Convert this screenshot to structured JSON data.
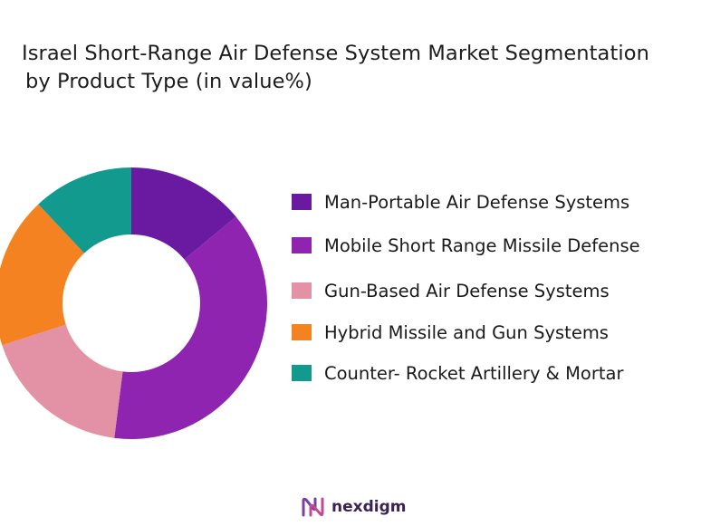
{
  "title_lines": [
    "Israel Short-Range Air Defense System Market Segmentation",
    "by Product Type (in value%)"
  ],
  "brand": {
    "name": "nexdigm"
  },
  "chart_data": {
    "type": "pie",
    "donut": true,
    "title": "Israel Short-Range Air Defense System Market Segmentation by Product Type (in value%)",
    "categories": [
      "Man-Portable Air Defense Systems",
      "Mobile Short Range Missile Defense",
      "Gun-Based Air Defense Systems",
      "Hybrid Missile and Gun Systems",
      "Counter- Rocket Artillery & Mortar"
    ],
    "values": [
      14,
      38,
      18,
      18,
      12
    ],
    "colors": [
      "#6a1aa0",
      "#8e24b0",
      "#e391a4",
      "#f58220",
      "#119a8d"
    ],
    "legend_position": "right"
  }
}
